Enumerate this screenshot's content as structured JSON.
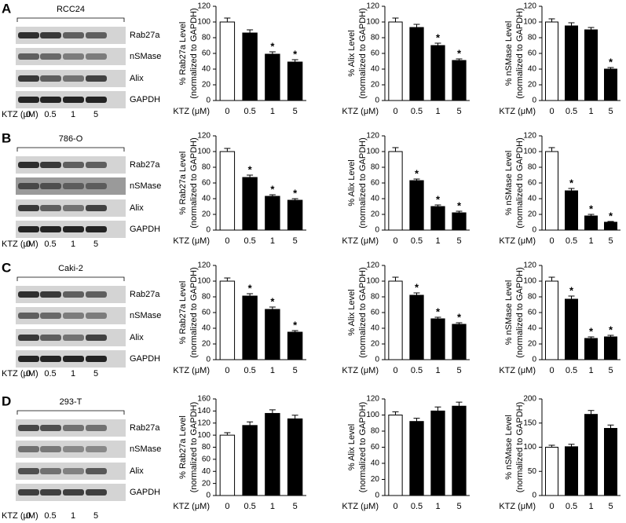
{
  "panels": [
    {
      "letter": "A",
      "cell_line": "RCC24",
      "proteins": [
        "Rab27a",
        "nSMase",
        "Alix",
        "GAPDH"
      ],
      "dose_label": "KTZ (μM)",
      "doses": [
        "0",
        "0.5",
        "1",
        "5"
      ]
    },
    {
      "letter": "B",
      "cell_line": "786-O",
      "proteins": [
        "Rab27a",
        "nSMase",
        "Alix",
        "GAPDH"
      ],
      "dose_label": "KTZ (μM)",
      "doses": [
        "0",
        "0.5",
        "1",
        "5"
      ]
    },
    {
      "letter": "C",
      "cell_line": "Caki-2",
      "proteins": [
        "Rab27a",
        "nSMase",
        "Alix",
        "GAPDH"
      ],
      "dose_label": "KTZ (μM)",
      "doses": [
        "0",
        "0.5",
        "1",
        "5"
      ]
    },
    {
      "letter": "D",
      "cell_line": "293-T",
      "proteins": [
        "Rab27a",
        "nSMase",
        "Alix",
        "GAPDH"
      ],
      "dose_label": "KTZ (μM)",
      "doses": [
        "0",
        "0.5",
        "1",
        "5"
      ]
    }
  ],
  "chart_data": [
    {
      "type": "bar",
      "ylabel": [
        "% Rab27a Level",
        "(normalized to GAPDH)"
      ],
      "xlabel": "KTZ (μM)",
      "categories": [
        "0",
        "0.5",
        "1",
        "5"
      ],
      "values": [
        100,
        86,
        59,
        49
      ],
      "errors": [
        5,
        4,
        3,
        3
      ],
      "colors": [
        "#ffffff",
        "#000000",
        "#000000",
        "#000000"
      ],
      "significance": [
        null,
        null,
        "*",
        "*"
      ],
      "ylim": [
        0,
        120
      ],
      "yticks": [
        0,
        20,
        40,
        60,
        80,
        100,
        120
      ]
    },
    {
      "type": "bar",
      "ylabel": [
        "% Alix Level",
        "(normalized to GAPDH)"
      ],
      "xlabel": "KTZ (μM)",
      "categories": [
        "0",
        "0.5",
        "1",
        "5"
      ],
      "values": [
        100,
        93,
        70,
        51
      ],
      "errors": [
        5,
        4,
        3,
        2
      ],
      "colors": [
        "#ffffff",
        "#000000",
        "#000000",
        "#000000"
      ],
      "significance": [
        null,
        null,
        "*",
        "*"
      ],
      "ylim": [
        0,
        120
      ],
      "yticks": [
        0,
        20,
        40,
        60,
        80,
        100,
        120
      ]
    },
    {
      "type": "bar",
      "ylabel": [
        "% nSMase Level",
        "(normalized to GAPDH)"
      ],
      "xlabel": "KTZ (μM)",
      "categories": [
        "0",
        "0.5",
        "1",
        "5"
      ],
      "values": [
        100,
        95,
        90,
        40
      ],
      "errors": [
        4,
        4,
        3,
        2
      ],
      "colors": [
        "#ffffff",
        "#000000",
        "#000000",
        "#000000"
      ],
      "significance": [
        null,
        null,
        null,
        "*"
      ],
      "ylim": [
        0,
        120
      ],
      "yticks": [
        0,
        20,
        40,
        60,
        80,
        100,
        120
      ]
    },
    {
      "type": "bar",
      "ylabel": [
        "% Rab27a Level",
        "(normalized to GAPDH)"
      ],
      "xlabel": "KTZ (μM)",
      "categories": [
        "0",
        "0.5",
        "1",
        "5"
      ],
      "values": [
        100,
        67,
        43,
        38
      ],
      "errors": [
        4,
        3,
        2,
        2
      ],
      "colors": [
        "#ffffff",
        "#000000",
        "#000000",
        "#000000"
      ],
      "significance": [
        null,
        "*",
        "*",
        "*"
      ],
      "ylim": [
        0,
        120
      ],
      "yticks": [
        0,
        20,
        40,
        60,
        80,
        100,
        120
      ]
    },
    {
      "type": "bar",
      "ylabel": [
        "% Alix Level",
        "(normalized to GAPDH)"
      ],
      "xlabel": "KTZ (μM)",
      "categories": [
        "0",
        "0.5",
        "1",
        "5"
      ],
      "values": [
        100,
        63,
        30,
        22
      ],
      "errors": [
        5,
        2,
        2,
        2
      ],
      "colors": [
        "#ffffff",
        "#000000",
        "#000000",
        "#000000"
      ],
      "significance": [
        null,
        "*",
        "*",
        "*"
      ],
      "ylim": [
        0,
        120
      ],
      "yticks": [
        0,
        20,
        40,
        60,
        80,
        100,
        120
      ]
    },
    {
      "type": "bar",
      "ylabel": [
        "% nSMase Level",
        "(normalized to GAPDH)"
      ],
      "xlabel": "KTZ (μM)",
      "categories": [
        "0",
        "0.5",
        "1",
        "5"
      ],
      "values": [
        100,
        50,
        18,
        10
      ],
      "errors": [
        5,
        3,
        2,
        1
      ],
      "colors": [
        "#ffffff",
        "#000000",
        "#000000",
        "#000000"
      ],
      "significance": [
        null,
        "*",
        "*",
        "*"
      ],
      "ylim": [
        0,
        120
      ],
      "yticks": [
        0,
        20,
        40,
        60,
        80,
        100,
        120
      ]
    },
    {
      "type": "bar",
      "ylabel": [
        "% Rab27a Level",
        "(normalized to GAPDH)"
      ],
      "xlabel": "KTZ (μM)",
      "categories": [
        "0",
        "0.5",
        "1",
        "5"
      ],
      "values": [
        100,
        81,
        64,
        35
      ],
      "errors": [
        4,
        3,
        3,
        2
      ],
      "colors": [
        "#ffffff",
        "#000000",
        "#000000",
        "#000000"
      ],
      "significance": [
        null,
        "*",
        "*",
        "*"
      ],
      "ylim": [
        0,
        120
      ],
      "yticks": [
        0,
        20,
        40,
        60,
        80,
        100,
        120
      ]
    },
    {
      "type": "bar",
      "ylabel": [
        "% Alix Level",
        "(normalized to GAPDH)"
      ],
      "xlabel": "KTZ (μM)",
      "categories": [
        "0",
        "0.5",
        "1",
        "5"
      ],
      "values": [
        100,
        82,
        52,
        45
      ],
      "errors": [
        5,
        3,
        2,
        2
      ],
      "colors": [
        "#ffffff",
        "#000000",
        "#000000",
        "#000000"
      ],
      "significance": [
        null,
        "*",
        "*",
        "*"
      ],
      "ylim": [
        0,
        120
      ],
      "yticks": [
        0,
        20,
        40,
        60,
        80,
        100,
        120
      ]
    },
    {
      "type": "bar",
      "ylabel": [
        "% nSMase Level",
        "(normalized to GAPDH)"
      ],
      "xlabel": "KTZ (μM)",
      "categories": [
        "0",
        "0.5",
        "1",
        "5"
      ],
      "values": [
        100,
        77,
        27,
        29
      ],
      "errors": [
        5,
        4,
        2,
        2
      ],
      "colors": [
        "#ffffff",
        "#000000",
        "#000000",
        "#000000"
      ],
      "significance": [
        null,
        "*",
        "*",
        "*"
      ],
      "ylim": [
        0,
        120
      ],
      "yticks": [
        0,
        20,
        40,
        60,
        80,
        100,
        120
      ]
    },
    {
      "type": "bar",
      "ylabel": [
        "% Rab27a Level",
        "(normalized to GAPDH)"
      ],
      "xlabel": "KTZ (μM)",
      "categories": [
        "0",
        "0.5",
        "1",
        "5"
      ],
      "values": [
        100,
        116,
        136,
        127
      ],
      "errors": [
        4,
        6,
        6,
        6
      ],
      "colors": [
        "#ffffff",
        "#000000",
        "#000000",
        "#000000"
      ],
      "ylim": [
        0,
        160
      ],
      "yticks": [
        0,
        20,
        40,
        60,
        80,
        100,
        120,
        140,
        160
      ]
    },
    {
      "type": "bar",
      "ylabel": [
        "% Alix Level",
        "(normalized to GAPDH)"
      ],
      "xlabel": "KTZ (μM)",
      "categories": [
        "0",
        "0.5",
        "1",
        "5"
      ],
      "values": [
        100,
        92,
        105,
        111
      ],
      "errors": [
        4,
        4,
        5,
        5
      ],
      "colors": [
        "#ffffff",
        "#000000",
        "#000000",
        "#000000"
      ],
      "ylim": [
        0,
        120
      ],
      "yticks": [
        0,
        20,
        40,
        60,
        80,
        100,
        120
      ]
    },
    {
      "type": "bar",
      "ylabel": [
        "% nSMase Level",
        "(normalized to GAPDH)"
      ],
      "xlabel": "KTZ (μM)",
      "categories": [
        "0",
        "0.5",
        "1",
        "5"
      ],
      "values": [
        100,
        101,
        168,
        139
      ],
      "errors": [
        4,
        5,
        8,
        7
      ],
      "colors": [
        "#ffffff",
        "#000000",
        "#000000",
        "#000000"
      ],
      "ylim": [
        0,
        200
      ],
      "yticks": [
        0,
        50,
        100,
        150,
        200
      ]
    }
  ]
}
